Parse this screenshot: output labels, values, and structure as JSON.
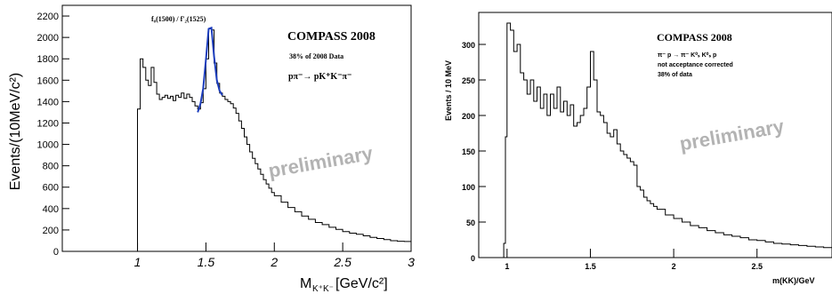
{
  "chart_data": [
    {
      "type": "histogram",
      "xlabel": "M",
      "xlabel_sub": "K⁺K⁻",
      "xlabel_unit": "[GeV/c²]",
      "ylabel": "Events/(10MeV/c²)",
      "xlim": [
        0.45,
        3.0
      ],
      "ylim": [
        0,
        2300
      ],
      "x_ticks": [
        1,
        1.5,
        2,
        2.5,
        3
      ],
      "x_tick_labels": [
        "1",
        "1.5",
        "2",
        "2.5",
        "3"
      ],
      "y_ticks": [
        0,
        200,
        400,
        600,
        800,
        1000,
        1200,
        1400,
        1600,
        1800,
        2000,
        2200
      ],
      "y_tick_labels": [
        "0",
        "200",
        "400",
        "600",
        "800",
        "1000",
        "1200",
        "1400",
        "1600",
        "1800",
        "2000",
        "2200"
      ],
      "bins": [
        [
          0.98,
          0
        ],
        [
          1.0,
          1330
        ],
        [
          1.02,
          1800
        ],
        [
          1.04,
          1720
        ],
        [
          1.06,
          1600
        ],
        [
          1.08,
          1550
        ],
        [
          1.1,
          1720
        ],
        [
          1.12,
          1580
        ],
        [
          1.14,
          1470
        ],
        [
          1.16,
          1420
        ],
        [
          1.18,
          1440
        ],
        [
          1.2,
          1460
        ],
        [
          1.22,
          1430
        ],
        [
          1.24,
          1450
        ],
        [
          1.26,
          1410
        ],
        [
          1.28,
          1460
        ],
        [
          1.3,
          1440
        ],
        [
          1.32,
          1480
        ],
        [
          1.34,
          1430
        ],
        [
          1.36,
          1470
        ],
        [
          1.38,
          1440
        ],
        [
          1.4,
          1400
        ],
        [
          1.42,
          1360
        ],
        [
          1.44,
          1330
        ],
        [
          1.46,
          1390
        ],
        [
          1.48,
          1520
        ],
        [
          1.5,
          1800
        ],
        [
          1.52,
          2080
        ],
        [
          1.54,
          2070
        ],
        [
          1.56,
          1760
        ],
        [
          1.58,
          1570
        ],
        [
          1.6,
          1480
        ],
        [
          1.62,
          1450
        ],
        [
          1.64,
          1420
        ],
        [
          1.66,
          1400
        ],
        [
          1.68,
          1380
        ],
        [
          1.7,
          1340
        ],
        [
          1.72,
          1290
        ],
        [
          1.74,
          1220
        ],
        [
          1.76,
          1150
        ],
        [
          1.78,
          1070
        ],
        [
          1.8,
          1000
        ],
        [
          1.82,
          930
        ],
        [
          1.84,
          870
        ],
        [
          1.86,
          820
        ],
        [
          1.88,
          770
        ],
        [
          1.9,
          720
        ],
        [
          1.92,
          670
        ],
        [
          1.94,
          630
        ],
        [
          1.96,
          590
        ],
        [
          1.98,
          550
        ],
        [
          2.0,
          520
        ],
        [
          2.05,
          460
        ],
        [
          2.1,
          410
        ],
        [
          2.15,
          370
        ],
        [
          2.2,
          330
        ],
        [
          2.25,
          300
        ],
        [
          2.3,
          270
        ],
        [
          2.35,
          250
        ],
        [
          2.4,
          225
        ],
        [
          2.45,
          205
        ],
        [
          2.5,
          185
        ],
        [
          2.55,
          170
        ],
        [
          2.6,
          160
        ],
        [
          2.65,
          145
        ],
        [
          2.7,
          130
        ],
        [
          2.75,
          120
        ],
        [
          2.8,
          110
        ],
        [
          2.85,
          100
        ],
        [
          2.9,
          95
        ],
        [
          2.95,
          92
        ],
        [
          3.0,
          90
        ]
      ],
      "fit_curve": [
        [
          1.44,
          1300
        ],
        [
          1.46,
          1380
        ],
        [
          1.48,
          1520
        ],
        [
          1.5,
          1790
        ],
        [
          1.52,
          2080
        ],
        [
          1.54,
          2090
        ],
        [
          1.56,
          1820
        ],
        [
          1.58,
          1600
        ],
        [
          1.6,
          1500
        ],
        [
          1.62,
          1460
        ]
      ],
      "annotations": {
        "peak_label": "f₀(1500) / f'₂(1525)",
        "experiment": "COMPASS 2008",
        "data_fraction": "38% of 2008 Data",
        "reaction": "pπ⁻→ pK⁺K⁻π⁻",
        "watermark": "preliminary"
      },
      "colors": {
        "histogram": "#000000",
        "fit": "#1c3dbd",
        "watermark": "#b3b3b3"
      },
      "grid": false,
      "legend": "none"
    },
    {
      "type": "histogram",
      "xlabel": "m(KK)/GeV",
      "ylabel": "Events / 10 MeV",
      "xlim": [
        0.83,
        2.95
      ],
      "ylim": [
        0,
        345
      ],
      "x_ticks": [
        1,
        1.5,
        2,
        2.5
      ],
      "x_tick_labels": [
        "1",
        "1.5",
        "2",
        "2.5"
      ],
      "y_ticks": [
        0,
        50,
        100,
        150,
        200,
        250,
        300
      ],
      "y_tick_labels": [
        "0",
        "50",
        "100",
        "150",
        "200",
        "250",
        "300"
      ],
      "bins": [
        [
          0.97,
          0
        ],
        [
          0.98,
          20
        ],
        [
          0.99,
          170
        ],
        [
          1.0,
          330
        ],
        [
          1.02,
          320
        ],
        [
          1.04,
          290
        ],
        [
          1.06,
          300
        ],
        [
          1.08,
          260
        ],
        [
          1.1,
          250
        ],
        [
          1.12,
          230
        ],
        [
          1.14,
          250
        ],
        [
          1.16,
          220
        ],
        [
          1.18,
          240
        ],
        [
          1.2,
          210
        ],
        [
          1.22,
          230
        ],
        [
          1.24,
          200
        ],
        [
          1.26,
          230
        ],
        [
          1.28,
          210
        ],
        [
          1.3,
          240
        ],
        [
          1.32,
          205
        ],
        [
          1.34,
          220
        ],
        [
          1.36,
          200
        ],
        [
          1.38,
          215
        ],
        [
          1.4,
          185
        ],
        [
          1.42,
          190
        ],
        [
          1.44,
          200
        ],
        [
          1.46,
          210
        ],
        [
          1.48,
          240
        ],
        [
          1.5,
          290
        ],
        [
          1.52,
          250
        ],
        [
          1.54,
          205
        ],
        [
          1.56,
          200
        ],
        [
          1.58,
          190
        ],
        [
          1.6,
          175
        ],
        [
          1.62,
          170
        ],
        [
          1.64,
          180
        ],
        [
          1.66,
          160
        ],
        [
          1.68,
          150
        ],
        [
          1.7,
          145
        ],
        [
          1.72,
          140
        ],
        [
          1.74,
          135
        ],
        [
          1.76,
          130
        ],
        [
          1.78,
          100
        ],
        [
          1.8,
          95
        ],
        [
          1.82,
          85
        ],
        [
          1.84,
          80
        ],
        [
          1.86,
          76
        ],
        [
          1.88,
          72
        ],
        [
          1.9,
          68
        ],
        [
          1.95,
          60
        ],
        [
          2.0,
          55
        ],
        [
          2.05,
          50
        ],
        [
          2.1,
          45
        ],
        [
          2.15,
          42
        ],
        [
          2.2,
          38
        ],
        [
          2.25,
          35
        ],
        [
          2.3,
          32
        ],
        [
          2.35,
          30
        ],
        [
          2.4,
          28
        ],
        [
          2.45,
          25
        ],
        [
          2.5,
          24
        ],
        [
          2.55,
          22
        ],
        [
          2.6,
          20
        ],
        [
          2.65,
          19
        ],
        [
          2.7,
          18
        ],
        [
          2.75,
          17
        ],
        [
          2.8,
          16
        ],
        [
          2.85,
          15
        ],
        [
          2.9,
          14
        ],
        [
          2.95,
          14
        ]
      ],
      "annotations": {
        "experiment": "COMPASS 2008",
        "reaction": "π⁻ p → π⁻ K⁰ₛ K⁰ₛ p",
        "note": "not acceptance corrected",
        "data_fraction": "38% of data",
        "watermark": "preliminary"
      },
      "colors": {
        "histogram": "#000000",
        "watermark": "#b3b3b3"
      },
      "grid": false,
      "legend": "none"
    }
  ]
}
